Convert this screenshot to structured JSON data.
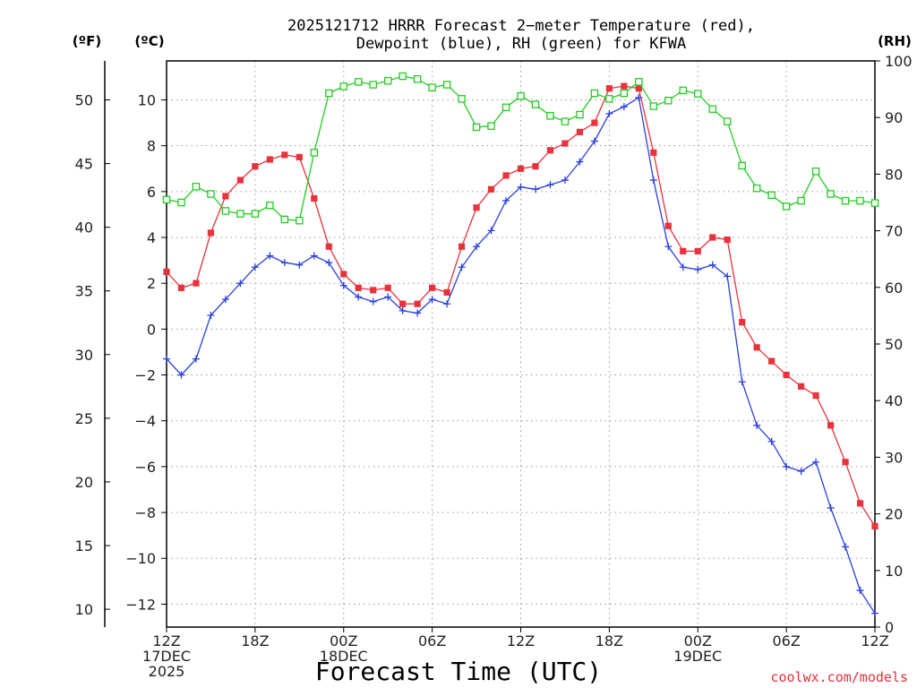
{
  "chart_data": {
    "type": "line",
    "title": "2025121712 HRRR Forecast 2−meter Temperature (red),",
    "subtitle": "Dewpoint (blue), RH (green) for KFWA",
    "xlabel": "Forecast Time (UTC)",
    "credit": "coolwx.com/models",
    "units": {
      "fahrenheit": "(ºF)",
      "celsius": "(ºC)",
      "rh": "(RH)"
    },
    "x_range_hours": [
      0,
      48
    ],
    "x_ticks": [
      {
        "hour": 0,
        "lines": [
          "12Z",
          "17DEC",
          "2025"
        ]
      },
      {
        "hour": 6,
        "lines": [
          "18Z"
        ]
      },
      {
        "hour": 12,
        "lines": [
          "00Z",
          "18DEC"
        ]
      },
      {
        "hour": 18,
        "lines": [
          "06Z"
        ]
      },
      {
        "hour": 24,
        "lines": [
          "12Z"
        ]
      },
      {
        "hour": 30,
        "lines": [
          "18Z"
        ]
      },
      {
        "hour": 36,
        "lines": [
          "00Z",
          "19DEC"
        ]
      },
      {
        "hour": 42,
        "lines": [
          "06Z"
        ]
      },
      {
        "hour": 48,
        "lines": [
          "12Z"
        ]
      }
    ],
    "ylim_c": [
      -13,
      11.7
    ],
    "ylim_rh": [
      0,
      100
    ],
    "y_ticks_c": [
      {
        "value": 10,
        "label": "10"
      },
      {
        "value": 8,
        "label": "8"
      },
      {
        "value": 6,
        "label": "6"
      },
      {
        "value": 4,
        "label": "4"
      },
      {
        "value": 2,
        "label": "2"
      },
      {
        "value": 0,
        "label": "0"
      },
      {
        "value": -2,
        "label": "−2"
      },
      {
        "value": -4,
        "label": "−4"
      },
      {
        "value": -6,
        "label": "−6"
      },
      {
        "value": -8,
        "label": "−8"
      },
      {
        "value": -10,
        "label": "−10"
      },
      {
        "value": -12,
        "label": "−12"
      }
    ],
    "y_ticks_f": [
      {
        "value": 50,
        "label": "50"
      },
      {
        "value": 45,
        "label": "45"
      },
      {
        "value": 40,
        "label": "40"
      },
      {
        "value": 35,
        "label": "35"
      },
      {
        "value": 30,
        "label": "30"
      },
      {
        "value": 25,
        "label": "25"
      },
      {
        "value": 20,
        "label": "20"
      },
      {
        "value": 15,
        "label": "15"
      },
      {
        "value": 10,
        "label": "10"
      }
    ],
    "y_ticks_rh": [
      {
        "value": 100,
        "label": "100"
      },
      {
        "value": 90,
        "label": "90"
      },
      {
        "value": 80,
        "label": "80"
      },
      {
        "value": 70,
        "label": "70"
      },
      {
        "value": 60,
        "label": "60"
      },
      {
        "value": 50,
        "label": "50"
      },
      {
        "value": 40,
        "label": "40"
      },
      {
        "value": 30,
        "label": "30"
      },
      {
        "value": 20,
        "label": "20"
      },
      {
        "value": 10,
        "label": "10"
      },
      {
        "value": 0,
        "label": "0"
      }
    ],
    "grid": true,
    "series": [
      {
        "key": "temperature",
        "axis": "c",
        "color": "#e8323c",
        "marker": "filled-square",
        "values": [
          2.5,
          1.8,
          2.0,
          4.2,
          5.8,
          6.5,
          7.1,
          7.4,
          7.6,
          7.5,
          5.7,
          3.6,
          2.4,
          1.8,
          1.7,
          1.8,
          1.1,
          1.1,
          1.8,
          1.6,
          3.6,
          5.3,
          6.1,
          6.7,
          7.0,
          7.1,
          7.8,
          8.1,
          8.6,
          9.0,
          10.5,
          10.6,
          10.5,
          7.7,
          4.5,
          3.4,
          3.4,
          4.0,
          3.9,
          0.3,
          -0.8,
          -1.4,
          -2.0,
          -2.5,
          -2.9,
          -4.2,
          -5.8,
          -7.6,
          -8.6
        ]
      },
      {
        "key": "dewpoint",
        "axis": "c",
        "color": "#2a3fe0",
        "marker": "plus",
        "values": [
          -1.3,
          -2.0,
          -1.3,
          0.6,
          1.3,
          2.0,
          2.7,
          3.2,
          2.9,
          2.8,
          3.2,
          2.9,
          1.9,
          1.4,
          1.2,
          1.4,
          0.8,
          0.7,
          1.3,
          1.1,
          2.7,
          3.6,
          4.3,
          5.6,
          6.2,
          6.1,
          6.3,
          6.5,
          7.3,
          8.2,
          9.4,
          9.7,
          10.1,
          6.5,
          3.6,
          2.7,
          2.6,
          2.8,
          2.3,
          -2.3,
          -4.2,
          -4.9,
          -6.0,
          -6.2,
          -5.8,
          -7.8,
          -9.5,
          -11.4,
          -12.4
        ]
      },
      {
        "key": "rh",
        "axis": "rh",
        "color": "#22cc22",
        "marker": "open-square",
        "values": [
          75.5,
          75.0,
          77.8,
          76.5,
          73.5,
          73.0,
          73.0,
          74.5,
          72.0,
          71.8,
          83.8,
          94.3,
          95.5,
          96.3,
          95.8,
          96.5,
          97.3,
          96.8,
          95.3,
          95.8,
          93.3,
          88.3,
          88.5,
          91.8,
          93.8,
          92.3,
          90.3,
          89.3,
          90.5,
          94.3,
          93.3,
          94.3,
          96.3,
          92.0,
          93.0,
          94.8,
          94.2,
          91.5,
          89.3,
          81.5,
          77.5,
          76.3,
          74.3,
          75.3,
          80.5,
          76.5,
          75.3,
          75.3,
          74.9
        ]
      }
    ]
  }
}
